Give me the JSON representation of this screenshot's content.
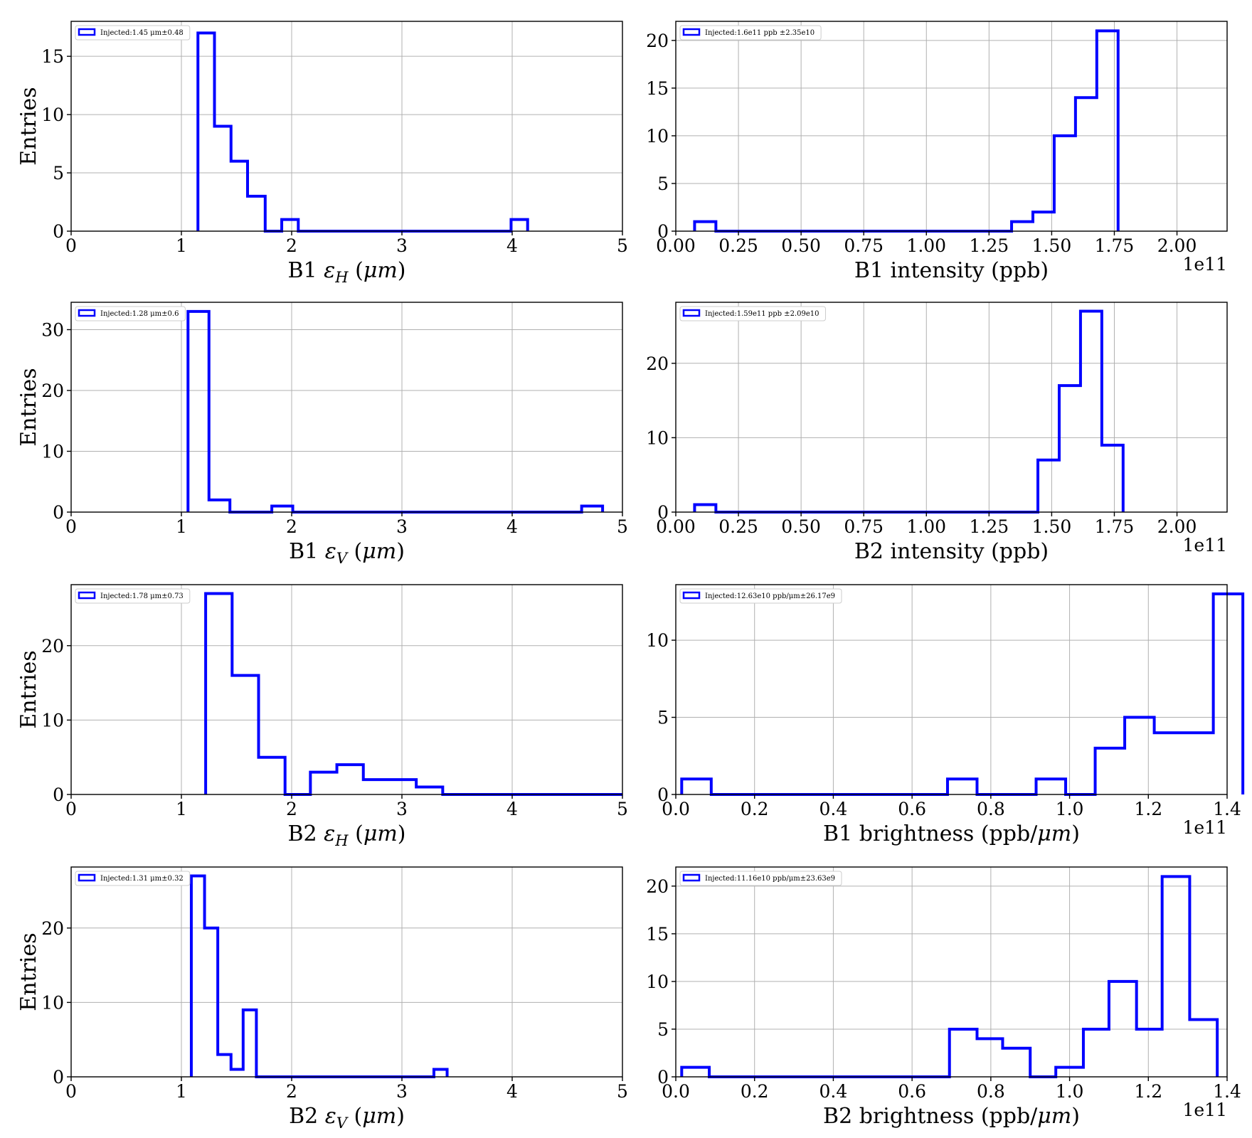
{
  "chart_data": [
    {
      "type": "bar",
      "legend": "Injected:1.45 μm±0.48",
      "xlabel": "B1 εH (μm)",
      "ylabel": "Entries",
      "xlim": [
        0,
        5
      ],
      "ylim": [
        0,
        18
      ],
      "xticks": [
        0,
        1,
        2,
        3,
        4,
        5
      ],
      "xtick_labels": [
        "0",
        "1",
        "2",
        "3",
        "4",
        "5"
      ],
      "yticks": [
        0,
        5,
        10,
        15
      ],
      "offset_text": "",
      "bins": [
        {
          "x0": 1.15,
          "x1": 1.3,
          "count": 17
        },
        {
          "x0": 1.3,
          "x1": 1.45,
          "count": 9
        },
        {
          "x0": 1.45,
          "x1": 1.6,
          "count": 6
        },
        {
          "x0": 1.6,
          "x1": 1.76,
          "count": 3
        },
        {
          "x0": 1.76,
          "x1": 1.91,
          "count": 0
        },
        {
          "x0": 1.91,
          "x1": 2.06,
          "count": 1
        },
        {
          "x0": 2.06,
          "x1": 3.99,
          "count": 0
        },
        {
          "x0": 3.99,
          "x1": 4.14,
          "count": 1
        }
      ]
    },
    {
      "type": "bar",
      "legend": "Injected:1.6e11 ppb ±2.35e10",
      "xlabel": "B1 intensity (ppb)",
      "ylabel": "",
      "xlim": [
        0,
        2.2
      ],
      "ylim": [
        0,
        22
      ],
      "xticks": [
        0,
        0.25,
        0.5,
        0.75,
        1.0,
        1.25,
        1.5,
        1.75,
        2.0
      ],
      "xtick_labels": [
        "0.00",
        "0.25",
        "0.50",
        "0.75",
        "1.00",
        "1.25",
        "1.50",
        "1.75",
        "2.00"
      ],
      "yticks": [
        0,
        5,
        10,
        15,
        20
      ],
      "offset_text": "1e11",
      "bins": [
        {
          "x0": 0.075,
          "x1": 0.16,
          "count": 1
        },
        {
          "x0": 0.16,
          "x1": 1.34,
          "count": 0
        },
        {
          "x0": 1.34,
          "x1": 1.425,
          "count": 1
        },
        {
          "x0": 1.425,
          "x1": 1.51,
          "count": 2
        },
        {
          "x0": 1.51,
          "x1": 1.595,
          "count": 10
        },
        {
          "x0": 1.595,
          "x1": 1.68,
          "count": 14
        },
        {
          "x0": 1.68,
          "x1": 1.765,
          "count": 21
        }
      ]
    },
    {
      "type": "bar",
      "legend": "Injected:1.28 μm±0.6",
      "xlabel": "B1 εV (μm)",
      "ylabel": "Entries",
      "xlim": [
        0,
        5
      ],
      "ylim": [
        0,
        34.5
      ],
      "xticks": [
        0,
        1,
        2,
        3,
        4,
        5
      ],
      "xtick_labels": [
        "0",
        "1",
        "2",
        "3",
        "4",
        "5"
      ],
      "yticks": [
        0,
        10,
        20,
        30
      ],
      "offset_text": "",
      "bins": [
        {
          "x0": 1.06,
          "x1": 1.25,
          "count": 33
        },
        {
          "x0": 1.25,
          "x1": 1.44,
          "count": 2
        },
        {
          "x0": 1.44,
          "x1": 1.82,
          "count": 0
        },
        {
          "x0": 1.82,
          "x1": 2.01,
          "count": 1
        },
        {
          "x0": 2.01,
          "x1": 4.63,
          "count": 0
        },
        {
          "x0": 4.63,
          "x1": 4.82,
          "count": 1
        }
      ]
    },
    {
      "type": "bar",
      "legend": "Injected:1.59e11 ppb ±2.09e10",
      "xlabel": "B2 intensity (ppb)",
      "ylabel": "",
      "xlim": [
        0,
        2.2
      ],
      "ylim": [
        0,
        28.2
      ],
      "xticks": [
        0,
        0.25,
        0.5,
        0.75,
        1.0,
        1.25,
        1.5,
        1.75,
        2.0
      ],
      "xtick_labels": [
        "0.00",
        "0.25",
        "0.50",
        "0.75",
        "1.00",
        "1.25",
        "1.50",
        "1.75",
        "2.00"
      ],
      "yticks": [
        0,
        10,
        20
      ],
      "offset_text": "1e11",
      "bins": [
        {
          "x0": 0.075,
          "x1": 0.16,
          "count": 1
        },
        {
          "x0": 0.16,
          "x1": 1.445,
          "count": 0
        },
        {
          "x0": 1.445,
          "x1": 1.53,
          "count": 7
        },
        {
          "x0": 1.53,
          "x1": 1.615,
          "count": 17
        },
        {
          "x0": 1.615,
          "x1": 1.7,
          "count": 27
        },
        {
          "x0": 1.7,
          "x1": 1.785,
          "count": 9
        }
      ]
    },
    {
      "type": "bar",
      "legend": "Injected:1.78 μm±0.73",
      "xlabel": "B2 εH (μm)",
      "ylabel": "Entries",
      "xlim": [
        0,
        5
      ],
      "ylim": [
        0,
        28.2
      ],
      "xticks": [
        0,
        1,
        2,
        3,
        4,
        5
      ],
      "xtick_labels": [
        "0",
        "1",
        "2",
        "3",
        "4",
        "5"
      ],
      "yticks": [
        0,
        10,
        20
      ],
      "offset_text": "",
      "bins": [
        {
          "x0": 1.22,
          "x1": 1.46,
          "count": 27
        },
        {
          "x0": 1.46,
          "x1": 1.7,
          "count": 16
        },
        {
          "x0": 1.7,
          "x1": 1.94,
          "count": 5
        },
        {
          "x0": 1.94,
          "x1": 2.17,
          "count": 0
        },
        {
          "x0": 2.17,
          "x1": 2.41,
          "count": 3
        },
        {
          "x0": 2.41,
          "x1": 2.65,
          "count": 4
        },
        {
          "x0": 2.65,
          "x1": 2.89,
          "count": 2
        },
        {
          "x0": 2.89,
          "x1": 3.13,
          "count": 2
        },
        {
          "x0": 3.13,
          "x1": 3.37,
          "count": 1
        },
        {
          "x0": 3.37,
          "x1": 5.0,
          "count": 0
        }
      ]
    },
    {
      "type": "bar",
      "legend": "Injected:12.63e10 ppb/μm±26.17e9",
      "xlabel": "B1 brightness (ppb/μm)",
      "ylabel": "",
      "xlim": [
        0,
        1.4
      ],
      "ylim": [
        0,
        13.6
      ],
      "xticks": [
        0,
        0.2,
        0.4,
        0.6,
        0.8,
        1.0,
        1.2,
        1.4
      ],
      "xtick_labels": [
        "0.0",
        "0.2",
        "0.4",
        "0.6",
        "0.8",
        "1.0",
        "1.2",
        "1.4"
      ],
      "yticks": [
        0,
        5,
        10
      ],
      "offset_text": "1e11",
      "bins": [
        {
          "x0": 0.015,
          "x1": 0.09,
          "count": 1
        },
        {
          "x0": 0.09,
          "x1": 0.69,
          "count": 0
        },
        {
          "x0": 0.69,
          "x1": 0.765,
          "count": 1
        },
        {
          "x0": 0.765,
          "x1": 0.915,
          "count": 0
        },
        {
          "x0": 0.915,
          "x1": 0.99,
          "count": 1
        },
        {
          "x0": 0.99,
          "x1": 1.065,
          "count": 0
        },
        {
          "x0": 1.065,
          "x1": 1.14,
          "count": 3
        },
        {
          "x0": 1.14,
          "x1": 1.215,
          "count": 5
        },
        {
          "x0": 1.215,
          "x1": 1.29,
          "count": 4
        },
        {
          "x0": 1.29,
          "x1": 1.365,
          "count": 4
        },
        {
          "x0": 1.365,
          "x1": 1.44,
          "count": 13
        }
      ]
    },
    {
      "type": "bar",
      "legend": "Injected:1.31 μm±0.32",
      "xlabel": "B2 εV (μm)",
      "ylabel": "Entries",
      "xlim": [
        0,
        5
      ],
      "ylim": [
        0,
        28.2
      ],
      "xticks": [
        0,
        1,
        2,
        3,
        4,
        5
      ],
      "xtick_labels": [
        "0",
        "1",
        "2",
        "3",
        "4",
        "5"
      ],
      "yticks": [
        0,
        10,
        20
      ],
      "offset_text": "",
      "bins": [
        {
          "x0": 1.09,
          "x1": 1.21,
          "count": 27
        },
        {
          "x0": 1.21,
          "x1": 1.33,
          "count": 20
        },
        {
          "x0": 1.33,
          "x1": 1.45,
          "count": 3
        },
        {
          "x0": 1.45,
          "x1": 1.56,
          "count": 1
        },
        {
          "x0": 1.56,
          "x1": 1.68,
          "count": 9
        },
        {
          "x0": 1.68,
          "x1": 3.29,
          "count": 0
        },
        {
          "x0": 3.29,
          "x1": 3.41,
          "count": 1
        }
      ]
    },
    {
      "type": "bar",
      "legend": "Injected:11.16e10 ppb/μm±23.63e9",
      "xlabel": "B2 brightness (ppb/μm)",
      "ylabel": "",
      "xlim": [
        0,
        1.4
      ],
      "ylim": [
        0,
        22
      ],
      "xticks": [
        0,
        0.2,
        0.4,
        0.6,
        0.8,
        1.0,
        1.2,
        1.4
      ],
      "xtick_labels": [
        "0.0",
        "0.2",
        "0.4",
        "0.6",
        "0.8",
        "1.0",
        "1.2",
        "1.4"
      ],
      "yticks": [
        0,
        5,
        10,
        15,
        20
      ],
      "offset_text": "1e11",
      "bins": [
        {
          "x0": 0.015,
          "x1": 0.085,
          "count": 1
        },
        {
          "x0": 0.085,
          "x1": 0.695,
          "count": 0
        },
        {
          "x0": 0.695,
          "x1": 0.765,
          "count": 5
        },
        {
          "x0": 0.765,
          "x1": 0.83,
          "count": 4
        },
        {
          "x0": 0.83,
          "x1": 0.9,
          "count": 3
        },
        {
          "x0": 0.9,
          "x1": 0.965,
          "count": 0
        },
        {
          "x0": 0.965,
          "x1": 1.035,
          "count": 1
        },
        {
          "x0": 1.035,
          "x1": 1.1,
          "count": 5
        },
        {
          "x0": 1.1,
          "x1": 1.17,
          "count": 10
        },
        {
          "x0": 1.17,
          "x1": 1.235,
          "count": 5
        },
        {
          "x0": 1.235,
          "x1": 1.305,
          "count": 21
        },
        {
          "x0": 1.305,
          "x1": 1.375,
          "count": 6
        }
      ]
    }
  ]
}
